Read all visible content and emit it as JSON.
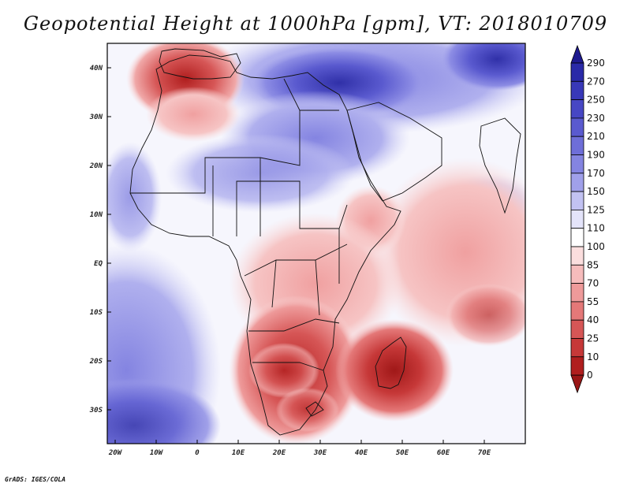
{
  "title": "Geopotential Height at 1000hPa [gpm], VT: 2018010709",
  "map": {
    "lat_labels": [
      "40N",
      "30N",
      "20N",
      "10N",
      "EQ",
      "10S",
      "20S",
      "30S"
    ],
    "lon_labels": [
      "20W",
      "10W",
      "0",
      "10E",
      "20E",
      "30E",
      "40E",
      "50E",
      "60E",
      "70E"
    ]
  },
  "colorbar": {
    "levels": [
      "290",
      "270",
      "250",
      "230",
      "210",
      "190",
      "170",
      "150",
      "125",
      "110",
      "100",
      "85",
      "70",
      "55",
      "40",
      "25",
      "10",
      "0"
    ],
    "colors": [
      "#1e1a8f",
      "#2a2aa8",
      "#3838b8",
      "#4747c4",
      "#5a5acf",
      "#6e6ed8",
      "#8484e1",
      "#a0a0ea",
      "#c2c2f2",
      "#e4e4fa",
      "#ffffff",
      "#fbdede",
      "#f6bcbc",
      "#ee9a9a",
      "#e47878",
      "#d65656",
      "#c63838",
      "#b01e1e",
      "#9a1616"
    ]
  },
  "credit": "GrADS: IGES/COLA"
}
